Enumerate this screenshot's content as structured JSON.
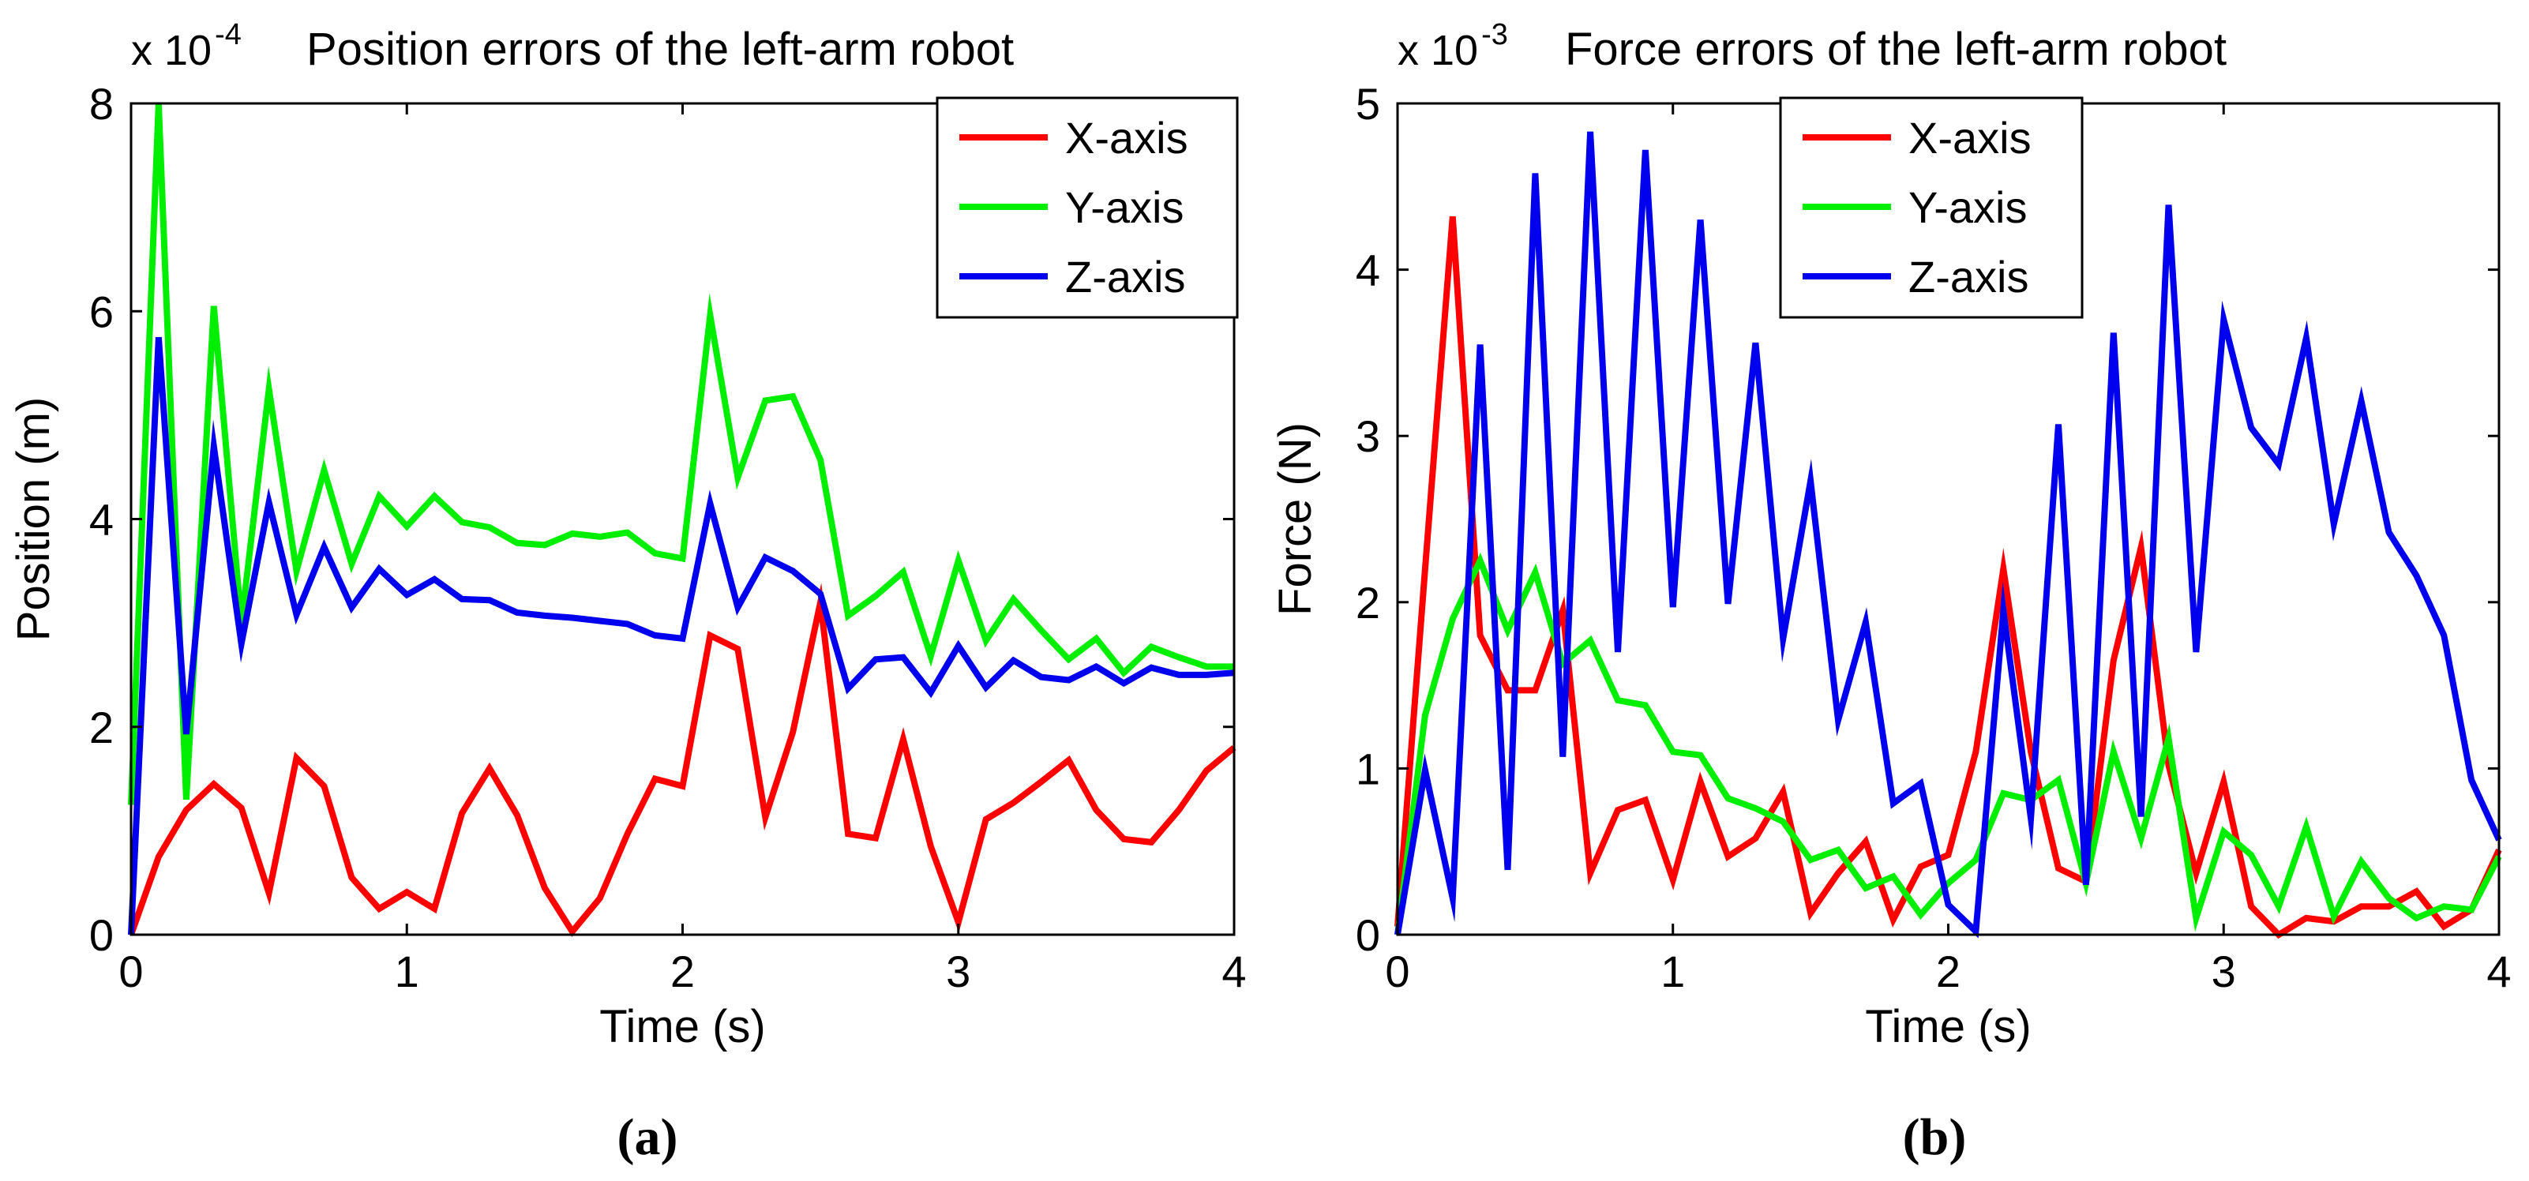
{
  "chart_data": [
    {
      "type": "line",
      "title": "Position errors of the left-arm robot",
      "scale_label": "x 10",
      "scale_exponent": "-4",
      "xlabel": "Time (s)",
      "ylabel": "Position (m)",
      "xlim": [
        0,
        4
      ],
      "ylim": [
        0,
        8
      ],
      "x_ticks": [
        "0",
        "1",
        "2",
        "3",
        "4"
      ],
      "y_ticks": [
        "0",
        "2",
        "4",
        "6",
        "8"
      ],
      "x_tick_values": [
        0,
        1,
        2,
        3,
        4
      ],
      "y_tick_values": [
        0,
        2,
        4,
        6,
        8
      ],
      "grid": false,
      "legend_position": "top-right",
      "panel_label": "(a)",
      "x": [
        0,
        0.1,
        0.2,
        0.3,
        0.4,
        0.5,
        0.6,
        0.7,
        0.8,
        0.9,
        1.0,
        1.1,
        1.2,
        1.3,
        1.4,
        1.5,
        1.6,
        1.7,
        1.8,
        1.9,
        2.0,
        2.1,
        2.2,
        2.3,
        2.4,
        2.5,
        2.6,
        2.7,
        2.8,
        2.9,
        3.0,
        3.1,
        3.2,
        3.3,
        3.4,
        3.5,
        3.6,
        3.7,
        3.8,
        3.9,
        4.0
      ],
      "series": [
        {
          "name": "X-axis",
          "color": "#ff0000",
          "values": [
            0.0,
            0.75,
            1.2,
            1.45,
            1.22,
            0.4,
            1.7,
            1.43,
            0.55,
            0.25,
            0.41,
            0.25,
            1.17,
            1.6,
            1.15,
            0.45,
            0.03,
            0.35,
            0.97,
            1.5,
            1.43,
            2.88,
            2.75,
            1.13,
            1.95,
            3.2,
            0.97,
            0.93,
            1.88,
            0.85,
            0.12,
            1.11,
            1.27,
            1.47,
            1.68,
            1.2,
            0.92,
            0.89,
            1.2,
            1.58,
            1.8
          ]
        },
        {
          "name": "Y-axis",
          "color": "#00ee00",
          "values": [
            1.25,
            8.0,
            1.3,
            6.05,
            3.0,
            5.25,
            3.5,
            4.47,
            3.57,
            4.22,
            3.93,
            4.22,
            3.97,
            3.92,
            3.77,
            3.75,
            3.86,
            3.83,
            3.87,
            3.67,
            3.62,
            5.96,
            4.4,
            5.14,
            5.18,
            4.57,
            3.07,
            3.26,
            3.49,
            2.68,
            3.6,
            2.83,
            3.23,
            2.93,
            2.65,
            2.85,
            2.52,
            2.77,
            2.67,
            2.58,
            2.58
          ]
        },
        {
          "name": "Z-axis",
          "color": "#0000ee",
          "values": [
            0.0,
            5.75,
            1.93,
            4.7,
            2.8,
            4.16,
            3.08,
            3.73,
            3.15,
            3.52,
            3.27,
            3.42,
            3.23,
            3.22,
            3.1,
            3.07,
            3.05,
            3.02,
            2.99,
            2.88,
            2.85,
            4.15,
            3.15,
            3.63,
            3.5,
            3.28,
            2.37,
            2.65,
            2.67,
            2.33,
            2.78,
            2.38,
            2.64,
            2.48,
            2.45,
            2.58,
            2.42,
            2.57,
            2.5,
            2.5,
            2.52
          ]
        }
      ]
    },
    {
      "type": "line",
      "title": "Force errors of the left-arm robot",
      "scale_label": "x 10",
      "scale_exponent": "-3",
      "xlabel": "Time (s)",
      "ylabel": "Force (N)",
      "xlim": [
        0,
        4
      ],
      "ylim": [
        0,
        5
      ],
      "x_ticks": [
        "0",
        "1",
        "2",
        "3",
        "4"
      ],
      "y_ticks": [
        "0",
        "1",
        "2",
        "3",
        "4",
        "5"
      ],
      "x_tick_values": [
        0,
        1,
        2,
        3,
        4
      ],
      "y_tick_values": [
        0,
        1,
        2,
        3,
        4,
        5
      ],
      "grid": false,
      "legend_position": "top-center",
      "panel_label": "(b)",
      "x": [
        0,
        0.1,
        0.2,
        0.3,
        0.4,
        0.5,
        0.6,
        0.7,
        0.8,
        0.9,
        1.0,
        1.1,
        1.2,
        1.3,
        1.4,
        1.5,
        1.6,
        1.7,
        1.8,
        1.9,
        2.0,
        2.1,
        2.2,
        2.3,
        2.4,
        2.5,
        2.6,
        2.7,
        2.8,
        2.9,
        3.0,
        3.1,
        3.2,
        3.3,
        3.4,
        3.5,
        3.6,
        3.7,
        3.8,
        3.9,
        4.0
      ],
      "series": [
        {
          "name": "X-axis",
          "color": "#ff0000",
          "values": [
            0.05,
            2.2,
            4.32,
            1.8,
            1.47,
            1.47,
            1.95,
            0.37,
            0.75,
            0.81,
            0.33,
            0.92,
            0.47,
            0.58,
            0.86,
            0.13,
            0.37,
            0.56,
            0.09,
            0.41,
            0.48,
            1.1,
            2.2,
            1.1,
            0.4,
            0.32,
            1.65,
            2.33,
            1.02,
            0.37,
            0.92,
            0.17,
            0.0,
            0.1,
            0.08,
            0.17,
            0.17,
            0.26,
            0.05,
            0.15,
            0.51
          ]
        },
        {
          "name": "Y-axis",
          "color": "#00ee00",
          "values": [
            0.0,
            1.32,
            1.9,
            2.25,
            1.83,
            2.18,
            1.63,
            1.77,
            1.41,
            1.38,
            1.1,
            1.08,
            0.82,
            0.76,
            0.68,
            0.45,
            0.51,
            0.28,
            0.35,
            0.12,
            0.31,
            0.45,
            0.85,
            0.81,
            0.93,
            0.31,
            1.1,
            0.58,
            1.18,
            0.1,
            0.62,
            0.48,
            0.17,
            0.65,
            0.11,
            0.44,
            0.22,
            0.1,
            0.17,
            0.15,
            0.47
          ]
        },
        {
          "name": "Z-axis",
          "color": "#0000ee",
          "values": [
            0.0,
            0.99,
            0.22,
            3.55,
            0.39,
            4.58,
            1.07,
            4.83,
            1.7,
            4.72,
            1.97,
            4.3,
            1.99,
            3.56,
            1.78,
            2.73,
            1.29,
            1.88,
            0.79,
            0.91,
            0.18,
            0.02,
            1.95,
            0.7,
            3.07,
            0.3,
            3.62,
            0.71,
            4.39,
            1.7,
            3.7,
            3.05,
            2.83,
            3.59,
            2.47,
            3.21,
            2.42,
            2.16,
            1.8,
            0.93,
            0.57
          ]
        }
      ]
    }
  ]
}
